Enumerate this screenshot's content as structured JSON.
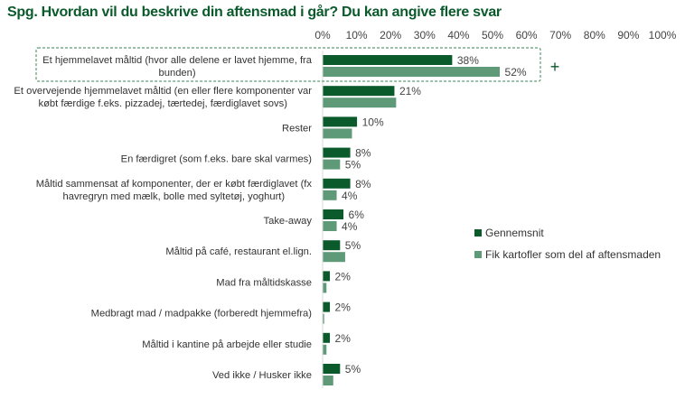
{
  "chart_data": {
    "type": "bar",
    "orientation": "horizontal",
    "title": "Spg. Hvordan vil du beskrive din aftensmad i går? Du kan angive flere svar",
    "xlabel": "",
    "ylabel": "",
    "xlim": [
      0,
      100
    ],
    "xticks": [
      "0%",
      "10%",
      "20%",
      "30%",
      "40%",
      "50%",
      "60%",
      "70%",
      "80%",
      "90%",
      "100%"
    ],
    "grid": false,
    "legend_position": "right",
    "categories": [
      [
        "Et hjemmelavet måltid (hvor alle delene er lavet hjemme, fra",
        "bunden)"
      ],
      [
        "Et overvejende hjemmelavet måltid (en eller flere komponenter var",
        "købt færdige f.eks. pizzadej, tærtedej, færdiglavet sovs)"
      ],
      [
        "Rester"
      ],
      [
        "En færdigret (som f.eks. bare skal varmes)"
      ],
      [
        "Måltid sammensat af komponenter, der er købt færdiglavet (fx",
        "havregryn med mælk, bolle med syltetøj, yoghurt)"
      ],
      [
        "Take-away"
      ],
      [
        "Måltid på café, restaurant el.lign."
      ],
      [
        "Mad fra måltidskasse"
      ],
      [
        "Medbragt mad / madpakke (forberedt hjemmefra)"
      ],
      [
        "Måltid i kantine på arbejde eller studie"
      ],
      [
        "Ved ikke / Husker ikke"
      ]
    ],
    "series": [
      {
        "name": "Gennemsnit",
        "color": "#0b5a2c",
        "values": [
          38,
          21,
          10,
          8,
          8,
          6,
          5,
          2,
          2,
          2,
          5
        ],
        "labels": [
          "38%",
          "21%",
          "10%",
          "8%",
          "8%",
          "6%",
          "5%",
          "2%",
          "2%",
          "2%",
          "5%"
        ]
      },
      {
        "name": "Fik kartofler som del af aftensmaden",
        "color": "#5f9a78",
        "values": [
          52,
          21.5,
          8.5,
          5,
          4,
          4,
          6.5,
          1,
          0.3,
          1,
          3
        ],
        "labels": [
          "52%",
          "",
          "",
          "5%",
          "4%",
          "4%",
          "",
          "",
          "",
          "",
          ""
        ]
      }
    ],
    "annotations": [
      {
        "type": "dashed-highlight-box",
        "target_category_index": 0,
        "color": "#5f9a78"
      },
      {
        "type": "text",
        "text": "+",
        "color": "#0b5a2c"
      }
    ]
  }
}
